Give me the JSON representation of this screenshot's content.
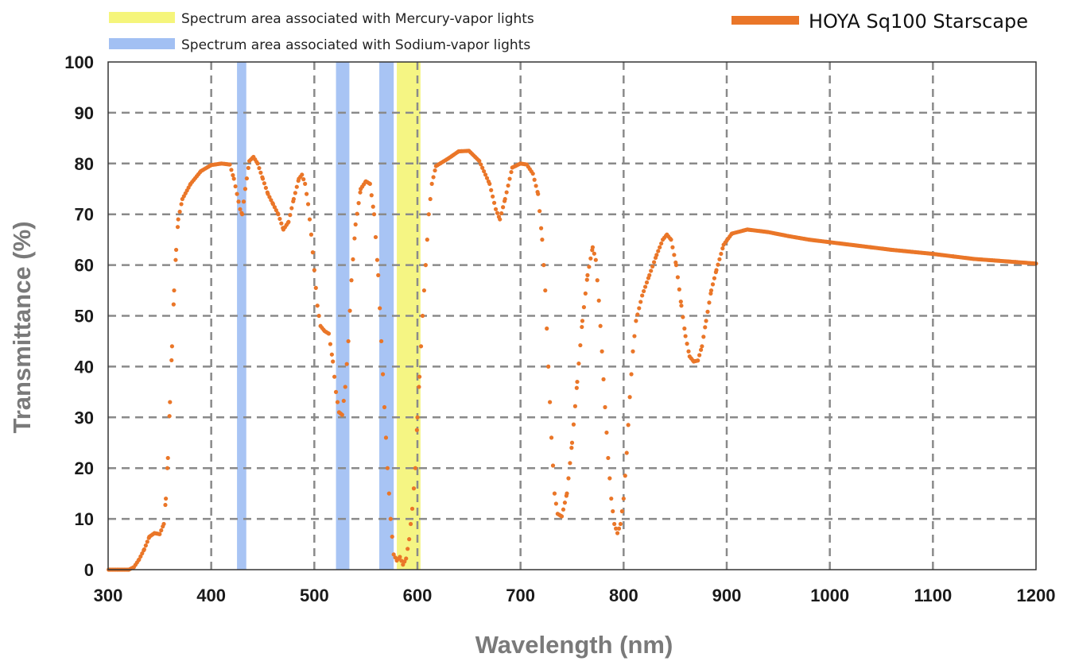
{
  "chart_data": {
    "type": "scatter",
    "title": "",
    "xlabel": "Wavelength (nm)",
    "ylabel": "Transmittance (%)",
    "xlim": [
      300,
      1200
    ],
    "ylim": [
      0,
      100
    ],
    "x_ticks": [
      "300",
      "400",
      "500",
      "600",
      "700",
      "800",
      "900",
      "1000",
      "1100",
      "1200"
    ],
    "y_ticks": [
      "0",
      "10",
      "20",
      "30",
      "40",
      "50",
      "60",
      "70",
      "80",
      "90",
      "100"
    ],
    "grid": true,
    "legend_position": "top",
    "series": [
      {
        "name": "HOYA Sq100 Starscape",
        "color": "#ea7628",
        "points": [
          [
            300,
            0
          ],
          [
            310,
            0
          ],
          [
            320,
            0
          ],
          [
            325,
            0.5
          ],
          [
            330,
            2
          ],
          [
            335,
            4
          ],
          [
            340,
            6.5
          ],
          [
            345,
            7.2
          ],
          [
            350,
            7
          ],
          [
            354,
            9
          ],
          [
            356,
            14
          ],
          [
            358,
            22
          ],
          [
            360,
            33
          ],
          [
            362,
            44
          ],
          [
            364,
            55
          ],
          [
            366,
            63
          ],
          [
            368,
            69
          ],
          [
            372,
            73
          ],
          [
            380,
            76
          ],
          [
            390,
            78.5
          ],
          [
            400,
            79.7
          ],
          [
            410,
            80
          ],
          [
            418,
            79.8
          ],
          [
            422,
            77
          ],
          [
            425,
            74
          ],
          [
            428,
            71
          ],
          [
            430,
            70
          ],
          [
            433,
            75
          ],
          [
            437,
            80.5
          ],
          [
            441,
            81.3
          ],
          [
            445,
            80
          ],
          [
            450,
            77
          ],
          [
            455,
            74
          ],
          [
            460,
            72
          ],
          [
            465,
            70
          ],
          [
            470,
            67
          ],
          [
            475,
            68.5
          ],
          [
            480,
            73
          ],
          [
            485,
            77
          ],
          [
            488,
            77.8
          ],
          [
            491,
            76
          ],
          [
            494,
            72
          ],
          [
            497,
            66
          ],
          [
            500,
            59
          ],
          [
            503,
            52
          ],
          [
            506,
            48
          ],
          [
            510,
            47
          ],
          [
            514,
            46.5
          ],
          [
            518,
            41
          ],
          [
            521,
            35
          ],
          [
            524,
            31
          ],
          [
            527,
            30.5
          ],
          [
            530,
            36
          ],
          [
            533,
            45
          ],
          [
            536,
            57
          ],
          [
            540,
            68
          ],
          [
            545,
            75
          ],
          [
            550,
            76.5
          ],
          [
            554,
            76
          ],
          [
            558,
            70
          ],
          [
            562,
            58
          ],
          [
            565,
            45
          ],
          [
            568,
            32
          ],
          [
            571,
            20
          ],
          [
            574,
            10
          ],
          [
            577,
            3
          ],
          [
            580,
            1.8
          ],
          [
            583,
            2.5
          ],
          [
            586,
            1
          ],
          [
            589,
            2.2
          ],
          [
            592,
            6
          ],
          [
            595,
            12
          ],
          [
            598,
            20
          ],
          [
            600,
            30
          ],
          [
            602,
            38
          ],
          [
            605,
            50
          ],
          [
            608,
            60
          ],
          [
            611,
            70
          ],
          [
            614,
            76
          ],
          [
            618,
            79.5
          ],
          [
            630,
            81
          ],
          [
            640,
            82.4
          ],
          [
            650,
            82.5
          ],
          [
            660,
            80.5
          ],
          [
            670,
            76
          ],
          [
            676,
            71
          ],
          [
            680,
            69
          ],
          [
            685,
            73
          ],
          [
            692,
            79.2
          ],
          [
            700,
            80
          ],
          [
            706,
            79.8
          ],
          [
            712,
            78
          ],
          [
            717,
            74
          ],
          [
            721,
            65
          ],
          [
            724,
            55
          ],
          [
            727,
            40
          ],
          [
            730,
            26
          ],
          [
            733,
            15
          ],
          [
            736,
            11
          ],
          [
            740,
            10.5
          ],
          [
            745,
            15
          ],
          [
            750,
            25
          ],
          [
            755,
            37
          ],
          [
            760,
            49
          ],
          [
            765,
            58
          ],
          [
            770,
            63.5
          ],
          [
            773,
            61
          ],
          [
            776,
            53
          ],
          [
            779,
            43
          ],
          [
            782,
            32
          ],
          [
            785,
            22
          ],
          [
            788,
            14
          ],
          [
            791,
            9
          ],
          [
            794,
            7.2
          ],
          [
            797,
            9
          ],
          [
            800,
            14
          ],
          [
            803,
            23
          ],
          [
            806,
            34
          ],
          [
            809,
            43
          ],
          [
            812,
            49
          ],
          [
            818,
            54
          ],
          [
            825,
            58
          ],
          [
            832,
            62
          ],
          [
            838,
            65
          ],
          [
            842,
            66
          ],
          [
            846,
            65
          ],
          [
            851,
            60
          ],
          [
            856,
            52
          ],
          [
            860,
            46
          ],
          [
            864,
            42
          ],
          [
            868,
            41
          ],
          [
            872,
            41.2
          ],
          [
            876,
            44
          ],
          [
            880,
            49
          ],
          [
            885,
            55
          ],
          [
            890,
            59
          ],
          [
            897,
            64
          ],
          [
            905,
            66.2
          ],
          [
            920,
            67
          ],
          [
            940,
            66.5
          ],
          [
            960,
            65.7
          ],
          [
            980,
            65
          ],
          [
            1000,
            64.5
          ],
          [
            1020,
            64
          ],
          [
            1040,
            63.5
          ],
          [
            1060,
            63
          ],
          [
            1080,
            62.6
          ],
          [
            1100,
            62.2
          ],
          [
            1120,
            61.7
          ],
          [
            1140,
            61.2
          ],
          [
            1160,
            60.9
          ],
          [
            1180,
            60.6
          ],
          [
            1200,
            60.3
          ]
        ]
      }
    ],
    "bands": [
      {
        "name": "Spectrum area associated with Mercury-vapor lights",
        "color": "#f2f25a",
        "ranges": [
          [
            580,
            603
          ]
        ]
      },
      {
        "name": "Spectrum area associated with Sodium-vapor lights",
        "color": "#8bb0f0",
        "ranges": [
          [
            425,
            434
          ],
          [
            521,
            534
          ],
          [
            563,
            577
          ]
        ]
      }
    ]
  }
}
